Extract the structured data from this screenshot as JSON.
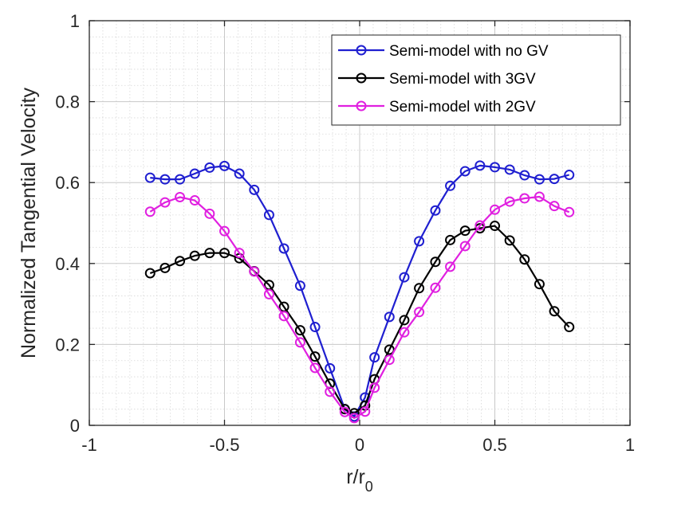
{
  "chart_data": {
    "type": "line",
    "title": "",
    "xlabel_main": "r/r",
    "xlabel_sub": "0",
    "ylabel": "Normalized Tangential Velocity",
    "xlim": [
      -1,
      1
    ],
    "ylim": [
      0,
      1
    ],
    "xticks": [
      -1,
      -0.5,
      0,
      0.5,
      1
    ],
    "xtick_labels": [
      "-1",
      "-0.5",
      "0",
      "0.5",
      "1"
    ],
    "yticks": [
      0,
      0.2,
      0.4,
      0.6,
      0.8,
      1
    ],
    "ytick_labels": [
      "0",
      "0.2",
      "0.4",
      "0.6",
      "0.8",
      "1"
    ],
    "grid": true,
    "minor_grid": true,
    "legend_position": "top-right",
    "series": [
      {
        "name": "Semi-model with no GV",
        "color": "#1f1fd0",
        "marker": "circle",
        "x": [
          -0.775,
          -0.72,
          -0.665,
          -0.61,
          -0.555,
          -0.5,
          -0.445,
          -0.39,
          -0.335,
          -0.28,
          -0.22,
          -0.165,
          -0.11,
          -0.055,
          -0.02,
          0.02,
          0.055,
          0.11,
          0.165,
          0.22,
          0.28,
          0.335,
          0.39,
          0.445,
          0.5,
          0.555,
          0.61,
          0.665,
          0.72,
          0.775
        ],
        "y": [
          0.612,
          0.608,
          0.608,
          0.622,
          0.637,
          0.641,
          0.622,
          0.582,
          0.52,
          0.437,
          0.345,
          0.243,
          0.141,
          0.04,
          0.022,
          0.069,
          0.168,
          0.268,
          0.366,
          0.455,
          0.531,
          0.592,
          0.628,
          0.642,
          0.638,
          0.632,
          0.618,
          0.608,
          0.609,
          0.619
        ]
      },
      {
        "name": "Semi-model with 3GV",
        "color": "#000000",
        "marker": "circle",
        "x": [
          -0.775,
          -0.72,
          -0.665,
          -0.61,
          -0.555,
          -0.5,
          -0.445,
          -0.39,
          -0.335,
          -0.28,
          -0.22,
          -0.165,
          -0.11,
          -0.055,
          -0.02,
          0.02,
          0.055,
          0.11,
          0.165,
          0.22,
          0.28,
          0.335,
          0.39,
          0.445,
          0.5,
          0.555,
          0.61,
          0.665,
          0.72,
          0.775
        ],
        "y": [
          0.376,
          0.389,
          0.406,
          0.419,
          0.426,
          0.426,
          0.413,
          0.381,
          0.347,
          0.293,
          0.235,
          0.17,
          0.103,
          0.04,
          0.03,
          0.049,
          0.114,
          0.187,
          0.26,
          0.339,
          0.404,
          0.458,
          0.481,
          0.487,
          0.493,
          0.457,
          0.41,
          0.349,
          0.282,
          0.243
        ]
      },
      {
        "name": "Semi-model with 2GV",
        "color": "#e020e0",
        "marker": "circle",
        "x": [
          -0.775,
          -0.72,
          -0.665,
          -0.61,
          -0.555,
          -0.5,
          -0.445,
          -0.39,
          -0.335,
          -0.28,
          -0.22,
          -0.165,
          -0.11,
          -0.055,
          -0.02,
          0.02,
          0.055,
          0.11,
          0.165,
          0.22,
          0.28,
          0.335,
          0.39,
          0.445,
          0.5,
          0.555,
          0.61,
          0.665,
          0.72,
          0.775
        ],
        "y": [
          0.528,
          0.551,
          0.564,
          0.556,
          0.523,
          0.48,
          0.426,
          0.38,
          0.324,
          0.27,
          0.205,
          0.142,
          0.083,
          0.033,
          0.018,
          0.034,
          0.093,
          0.162,
          0.23,
          0.28,
          0.34,
          0.392,
          0.443,
          0.494,
          0.533,
          0.553,
          0.561,
          0.565,
          0.542,
          0.527
        ]
      }
    ]
  }
}
